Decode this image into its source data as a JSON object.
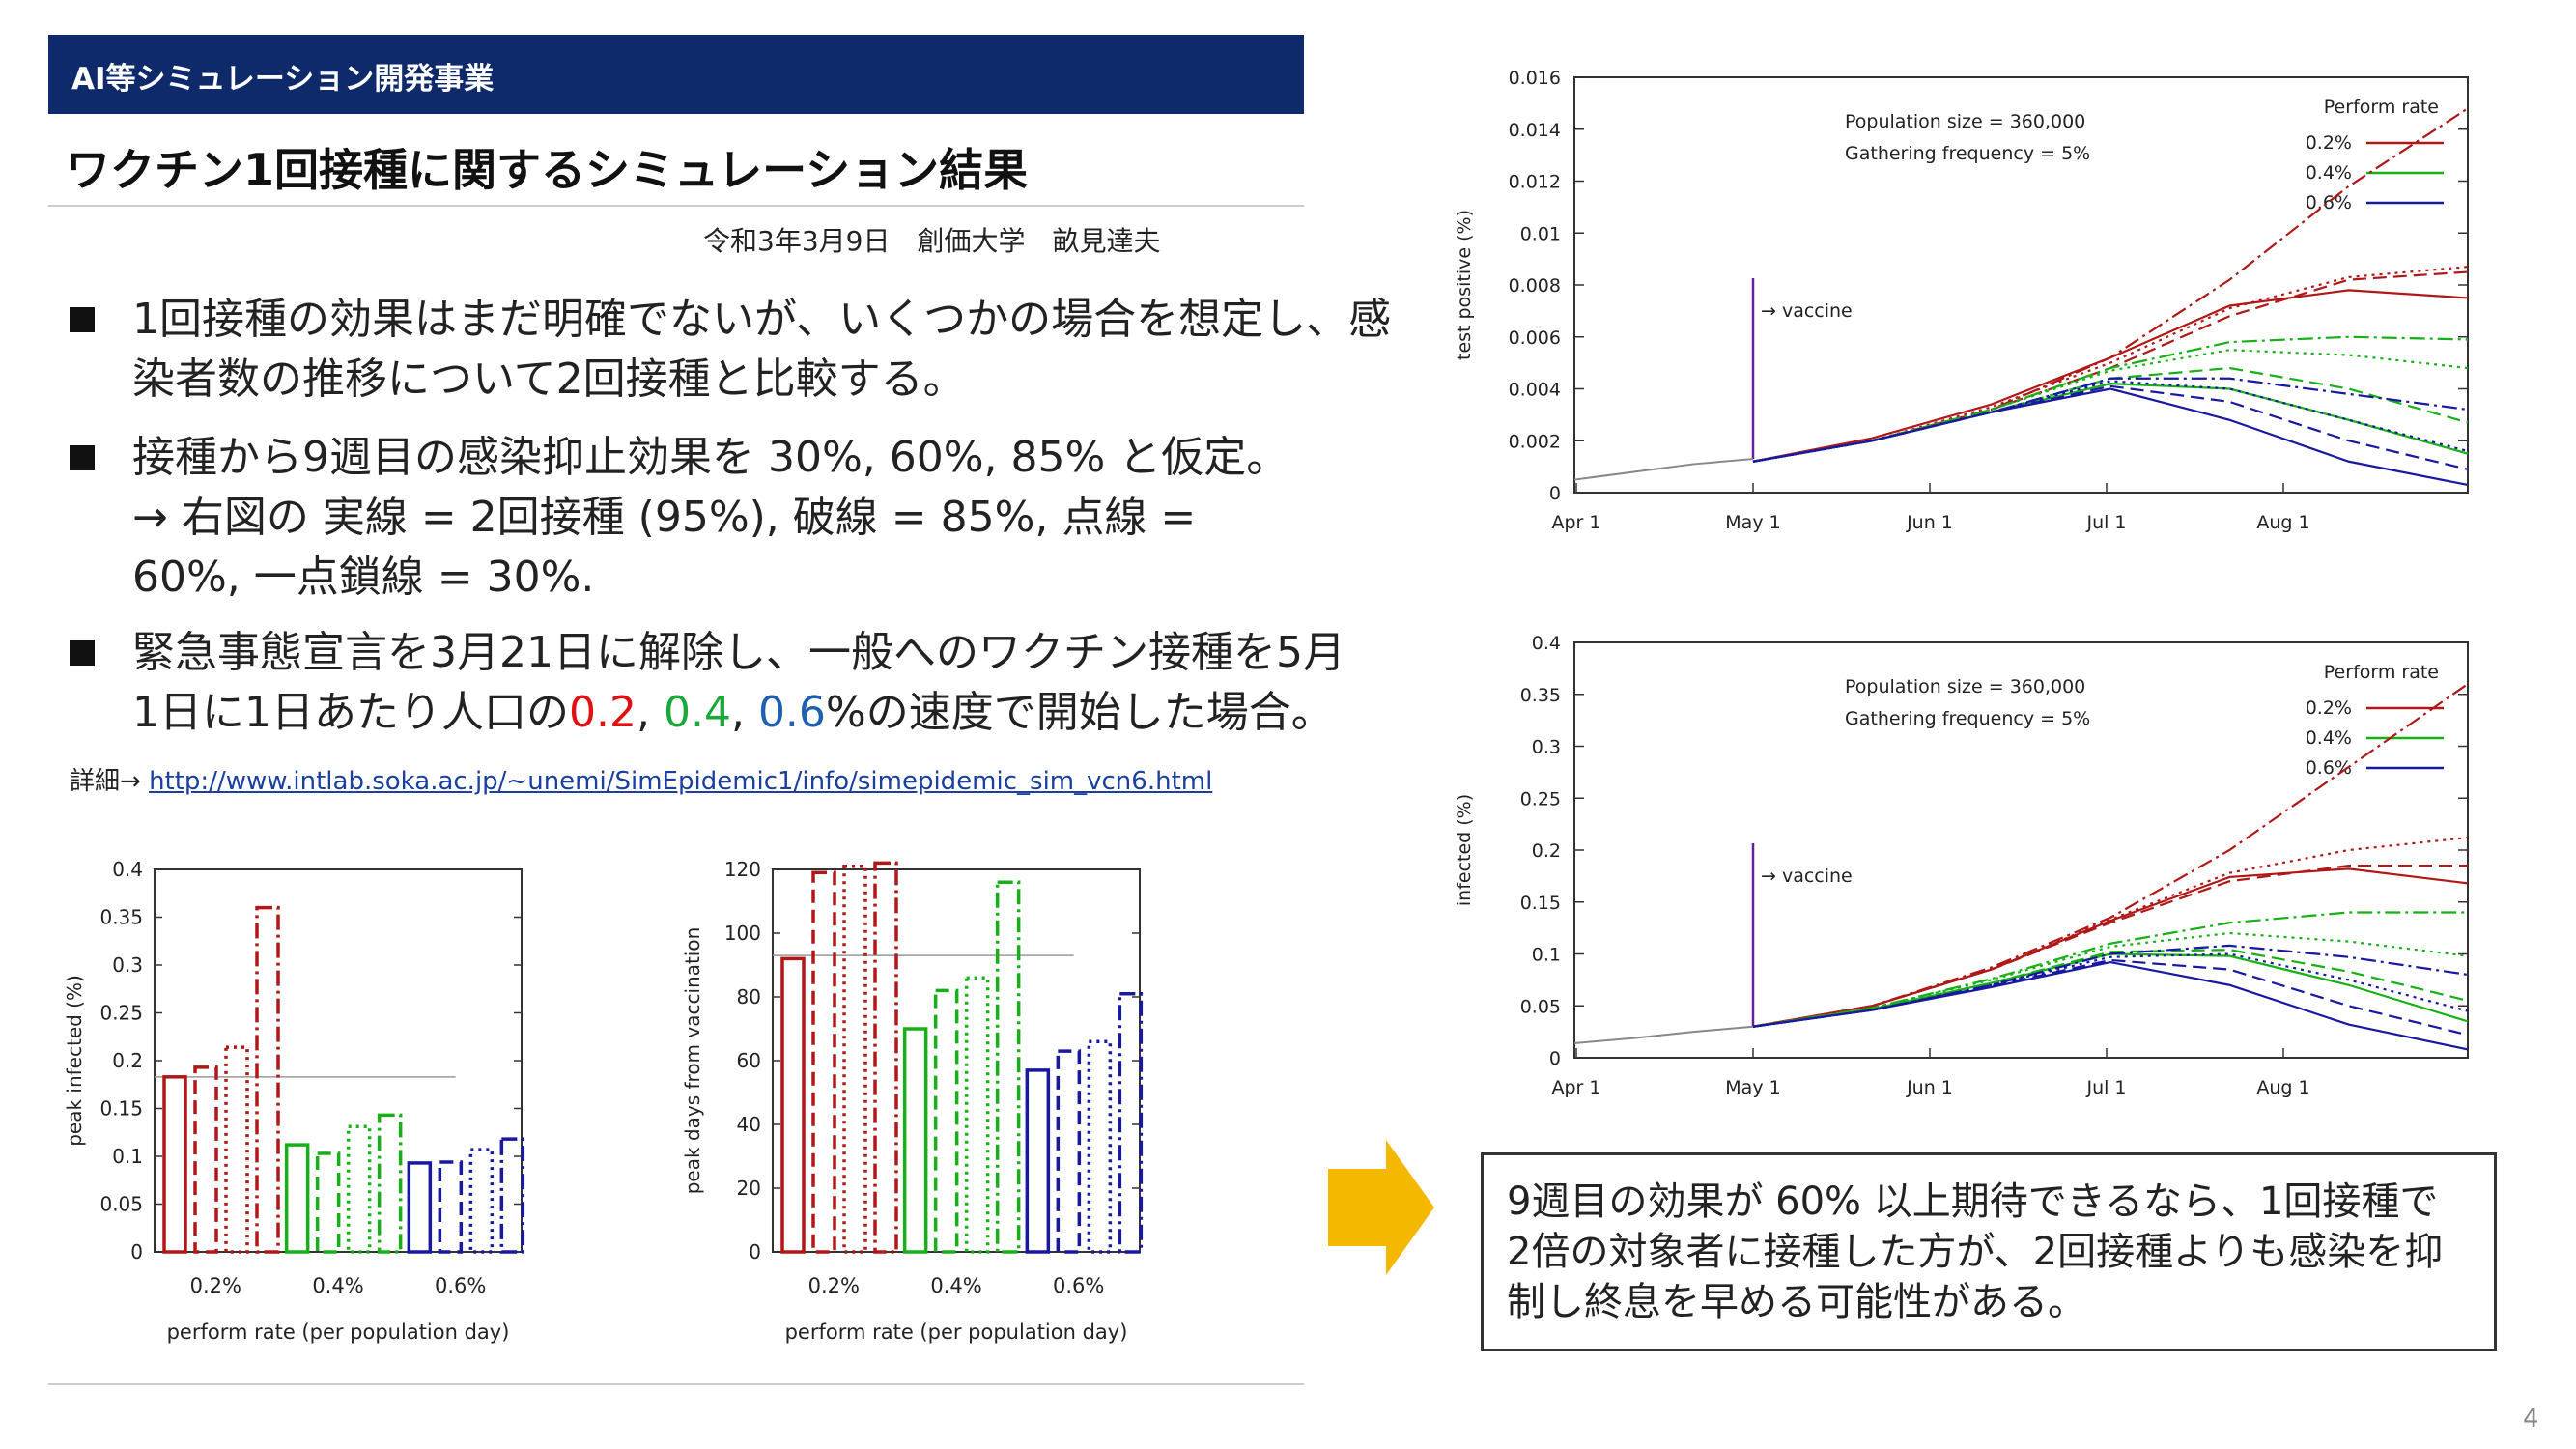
{
  "header": {
    "label": "AI等シミュレーション開発事業"
  },
  "title": "ワクチン1回接種に関するシミュレーション結果",
  "byline": "令和3年3月9日　創価大学　畝見達夫",
  "bullets": [
    {
      "lines": [
        "1回接種の効果はまだ明確でないが、いくつかの場合を想定し、感",
        "染者数の推移について2回接種と比較する。"
      ]
    },
    {
      "lines": [
        "接種から9週目の感染抑止効果を 30%, 60%, 85% と仮定。",
        "→ 右図の 実線 = 2回接種 (95%), 破線 = 85%, 点線 =",
        "60%, 一点鎖線 = 30%."
      ]
    },
    {
      "line1": "緊急事態宣言を3月21日に解除し、一般へのワクチン接種を5月",
      "line2_pre": "1日に1日あたり人口の",
      "rate1": "0.2",
      "sep1": ", ",
      "rate2": "0.4",
      "sep2": ", ",
      "rate3": "0.6",
      "line2_post": "%の速度で開始した場合。"
    }
  ],
  "detail": {
    "label": "詳細→ ",
    "url": "http://www.intlab.soka.ac.jp/~unemi/SimEpidemic1/info/simepidemic_sim_vcn6.html"
  },
  "conclusion": {
    "lines": [
      "9週目の効果が 60% 以上期待できるなら、1回接種で",
      "2倍の対象者に接種した方が、2回接種よりも感染を抑",
      "制し終息を早める可能性がある。"
    ]
  },
  "page_number": "4",
  "colors": {
    "header_bg": "#0e2a6b",
    "red": "#b01818",
    "green": "#18b018",
    "blue": "#1818a0",
    "arrow": "#f5b800"
  },
  "chart_data": [
    {
      "type": "bar",
      "categories": [
        "0.2%",
        "0.4%",
        "0.6%"
      ],
      "ylabel": "peak infected (%)",
      "xlabel": "perform rate (per population day)",
      "ylim": [
        0,
        0.4
      ],
      "yticks": [
        "0",
        "0.05",
        "0.1",
        "0.15",
        "0.2",
        "0.25",
        "0.3",
        "0.35",
        "0.4"
      ],
      "reference_line": 0.183,
      "series": [
        {
          "style": "solid",
          "values": [
            0.183,
            0.112,
            0.093
          ]
        },
        {
          "style": "dashed",
          "values": [
            0.193,
            0.103,
            0.094
          ]
        },
        {
          "style": "dotted",
          "values": [
            0.214,
            0.131,
            0.107
          ]
        },
        {
          "style": "dashdot",
          "values": [
            0.36,
            0.143,
            0.118
          ]
        }
      ]
    },
    {
      "type": "bar",
      "categories": [
        "0.2%",
        "0.4%",
        "0.6%"
      ],
      "ylabel": "peak days from vaccination",
      "xlabel": "perform rate (per population day)",
      "ylim": [
        0,
        120
      ],
      "yticks": [
        "0",
        "20",
        "40",
        "60",
        "80",
        "100",
        "120"
      ],
      "reference_line": 93,
      "series": [
        {
          "style": "solid",
          "values": [
            92,
            70,
            57
          ]
        },
        {
          "style": "dashed",
          "values": [
            119,
            82,
            63
          ]
        },
        {
          "style": "dotted",
          "values": [
            121,
            86,
            66
          ]
        },
        {
          "style": "dashdot",
          "values": [
            122,
            116,
            81
          ]
        }
      ]
    },
    {
      "type": "line",
      "ylabel": "test positive (%)",
      "ylim": [
        0,
        0.016
      ],
      "yticks": [
        "0",
        "0.002",
        "0.004",
        "0.006",
        "0.008",
        "0.01",
        "0.012",
        "0.014",
        "0.016"
      ],
      "x_ticks": [
        "Apr 1",
        "May 1",
        "Jun 1",
        "Jul 1",
        "Aug 1"
      ],
      "annotation": "→ vaccine",
      "info_lines": [
        "Population size = 360,000",
        "Gathering frequency = 5%"
      ],
      "legend_title": "Perform rate",
      "legend": [
        "0.2%",
        "0.4%",
        "0.6%"
      ],
      "baseline": [
        0.0005,
        0.0008,
        0.0011,
        0.0013
      ],
      "series": [
        {
          "rate": "0.2%",
          "style": "solid",
          "values": [
            0.0012,
            0.0021,
            0.0034,
            0.0052,
            0.0072,
            0.0078,
            0.0075
          ]
        },
        {
          "rate": "0.2%",
          "style": "dashed",
          "values": [
            0.0012,
            0.002,
            0.0032,
            0.0048,
            0.0068,
            0.0082,
            0.0085
          ]
        },
        {
          "rate": "0.2%",
          "style": "dotted",
          "values": [
            0.0012,
            0.002,
            0.0033,
            0.005,
            0.0071,
            0.0083,
            0.0087
          ]
        },
        {
          "rate": "0.2%",
          "style": "dashdot",
          "values": [
            0.0012,
            0.002,
            0.0032,
            0.0052,
            0.0082,
            0.0118,
            0.0148
          ]
        },
        {
          "rate": "0.4%",
          "style": "solid",
          "values": [
            0.0012,
            0.002,
            0.0031,
            0.0042,
            0.004,
            0.0028,
            0.0015
          ]
        },
        {
          "rate": "0.4%",
          "style": "dashed",
          "values": [
            0.0012,
            0.002,
            0.0031,
            0.0044,
            0.0048,
            0.004,
            0.0027
          ]
        },
        {
          "rate": "0.4%",
          "style": "dotted",
          "values": [
            0.0012,
            0.002,
            0.0032,
            0.0047,
            0.0055,
            0.0053,
            0.0048
          ]
        },
        {
          "rate": "0.4%",
          "style": "dashdot",
          "values": [
            0.0012,
            0.002,
            0.0032,
            0.0048,
            0.0058,
            0.006,
            0.0059
          ]
        },
        {
          "rate": "0.6%",
          "style": "solid",
          "values": [
            0.0012,
            0.002,
            0.0031,
            0.004,
            0.0028,
            0.0012,
            0.0003
          ]
        },
        {
          "rate": "0.6%",
          "style": "dashed",
          "values": [
            0.0012,
            0.002,
            0.0031,
            0.0041,
            0.0035,
            0.002,
            0.0009
          ]
        },
        {
          "rate": "0.6%",
          "style": "dotted",
          "values": [
            0.0012,
            0.002,
            0.0031,
            0.0043,
            0.004,
            0.0028,
            0.0016
          ]
        },
        {
          "rate": "0.6%",
          "style": "dashdot",
          "values": [
            0.0012,
            0.002,
            0.0031,
            0.0044,
            0.0044,
            0.0038,
            0.0032
          ]
        }
      ]
    },
    {
      "type": "line",
      "ylabel": "infected (%)",
      "ylim": [
        0,
        0.4
      ],
      "yticks": [
        "0",
        "0.05",
        "0.1",
        "0.15",
        "0.2",
        "0.25",
        "0.3",
        "0.35",
        "0.4"
      ],
      "x_ticks": [
        "Apr 1",
        "May 1",
        "Jun 1",
        "Jul 1",
        "Aug 1"
      ],
      "annotation": "→ vaccine",
      "info_lines": [
        "Population size = 360,000",
        "Gathering frequency = 5%"
      ],
      "legend_title": "Perform rate",
      "legend": [
        "0.2%",
        "0.4%",
        "0.6%"
      ],
      "baseline": [
        0.014,
        0.019,
        0.025,
        0.03
      ],
      "series": [
        {
          "rate": "0.2%",
          "style": "solid",
          "values": [
            0.03,
            0.05,
            0.085,
            0.132,
            0.174,
            0.182,
            0.168
          ]
        },
        {
          "rate": "0.2%",
          "style": "dashed",
          "values": [
            0.03,
            0.05,
            0.085,
            0.13,
            0.17,
            0.185,
            0.185
          ]
        },
        {
          "rate": "0.2%",
          "style": "dotted",
          "values": [
            0.03,
            0.05,
            0.085,
            0.133,
            0.178,
            0.2,
            0.212
          ]
        },
        {
          "rate": "0.2%",
          "style": "dashdot",
          "values": [
            0.03,
            0.05,
            0.087,
            0.135,
            0.2,
            0.28,
            0.36
          ]
        },
        {
          "rate": "0.4%",
          "style": "solid",
          "values": [
            0.03,
            0.047,
            0.072,
            0.1,
            0.098,
            0.07,
            0.035
          ]
        },
        {
          "rate": "0.4%",
          "style": "dashed",
          "values": [
            0.03,
            0.047,
            0.072,
            0.102,
            0.104,
            0.083,
            0.055
          ]
        },
        {
          "rate": "0.4%",
          "style": "dotted",
          "values": [
            0.03,
            0.048,
            0.075,
            0.107,
            0.12,
            0.112,
            0.098
          ]
        },
        {
          "rate": "0.4%",
          "style": "dashdot",
          "values": [
            0.03,
            0.048,
            0.076,
            0.11,
            0.13,
            0.14,
            0.14
          ]
        },
        {
          "rate": "0.6%",
          "style": "solid",
          "values": [
            0.03,
            0.046,
            0.068,
            0.092,
            0.07,
            0.032,
            0.008
          ]
        },
        {
          "rate": "0.6%",
          "style": "dashed",
          "values": [
            0.03,
            0.046,
            0.069,
            0.094,
            0.085,
            0.05,
            0.022
          ]
        },
        {
          "rate": "0.6%",
          "style": "dotted",
          "values": [
            0.03,
            0.046,
            0.07,
            0.097,
            0.1,
            0.075,
            0.045
          ]
        },
        {
          "rate": "0.6%",
          "style": "dashdot",
          "values": [
            0.03,
            0.046,
            0.07,
            0.1,
            0.108,
            0.097,
            0.08
          ]
        }
      ]
    }
  ]
}
